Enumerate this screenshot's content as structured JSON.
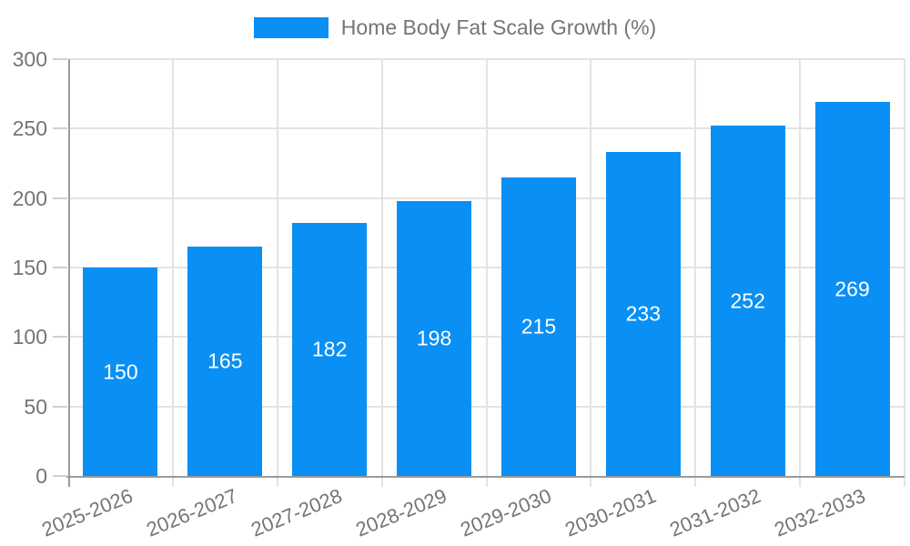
{
  "chart_data": {
    "type": "bar",
    "title": "Home Body Fat Scale Growth (%)",
    "categories": [
      "2025-2026",
      "2026-2027",
      "2027-2028",
      "2028-2029",
      "2029-2030",
      "2030-2031",
      "2031-2032",
      "2032-2033"
    ],
    "values": [
      150,
      165,
      182,
      198,
      215,
      233,
      252,
      269
    ],
    "xlabel": "",
    "ylabel": "",
    "ylim": [
      0,
      300
    ],
    "yticks": [
      0,
      50,
      100,
      150,
      200,
      250,
      300
    ],
    "grid": true,
    "legend_position": "top-center",
    "value_label_position": "inside-center"
  },
  "legend": {
    "label": "Home Body Fat Scale Growth (%)"
  },
  "colors": {
    "bar": "#0a8ff4",
    "value_label": "#ffffff",
    "axis_text": "#757575",
    "grid_line": "#e3e3e3",
    "axis_line": "#9a9a9a",
    "tick_mark": "#cfcfcf",
    "background": "#ffffff"
  }
}
